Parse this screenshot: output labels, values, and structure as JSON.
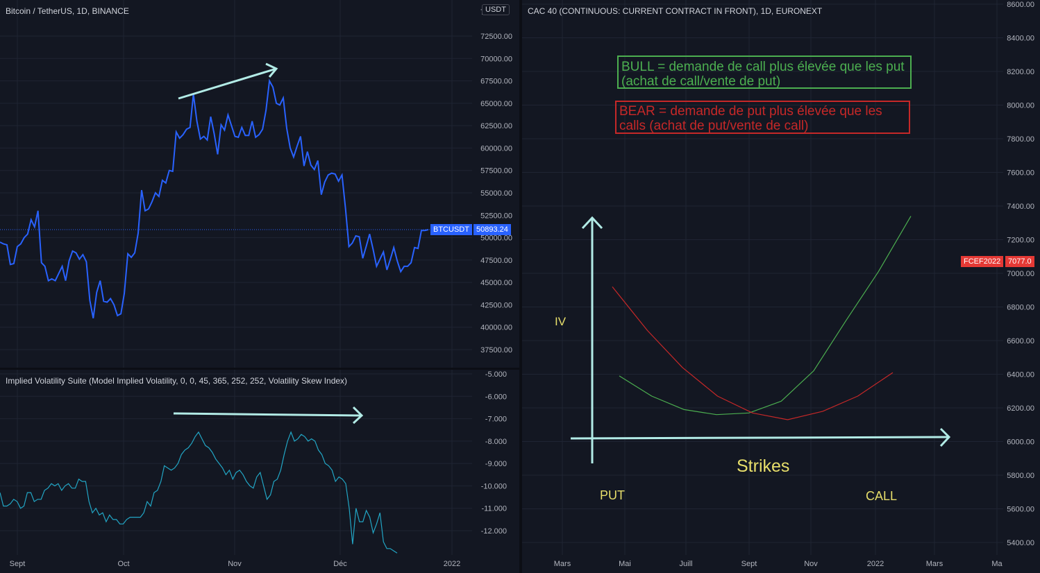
{
  "colors": {
    "background": "#131722",
    "grid": "#1f2433",
    "btc_line": "#2962ff",
    "iv_line": "#22a6c5",
    "annotation_arrow": "#b2ebe6",
    "bull": "#4caf50",
    "bear": "#c62828",
    "text_yellow": "#e8df6b",
    "btc_badge": "#2962ff",
    "cac_badge": "#e53935"
  },
  "left_chart": {
    "title": "Bitcoin / TetherUS, 1D, BINANCE",
    "currency_label": "USDT",
    "symbol_badge": "BTCUSDT",
    "last_price_label": "50893.24",
    "yticks": [
      "72500.00",
      "70000.00",
      "67500.00",
      "65000.00",
      "62500.00",
      "60000.00",
      "57500.00",
      "55000.00",
      "52500.00",
      "50000.00",
      "47500.00",
      "45000.00",
      "42500.00",
      "40000.00",
      "37500.00"
    ],
    "top_tick_partial": "7",
    "xticks": [
      "Sept",
      "Oct",
      "Nov",
      "Déc",
      "2022"
    ]
  },
  "iv_panel": {
    "title": "Implied Volatility Suite (Model Implied Volatility, 0, 0, 45, 365, 252, 252, Volatility Skew Index)",
    "yticks": [
      "-5.000",
      "-6.000",
      "-7.000",
      "-8.000",
      "-9.000",
      "-10.000",
      "-11.000",
      "-12.000"
    ]
  },
  "right_chart": {
    "title": "CAC 40 (CONTINUOUS: CURRENT CONTRACT IN FRONT), 1D, EURONEXT",
    "symbol_badge": "FCEF2022",
    "last_price_label": "7077.0",
    "yticks": [
      "8600.00",
      "8400.00",
      "8200.00",
      "8000.00",
      "7800.00",
      "7600.00",
      "7400.00",
      "7200.00",
      "7000.00",
      "6800.00",
      "6600.00",
      "6400.00",
      "6200.00",
      "6000.00",
      "5800.00",
      "5600.00",
      "5400.00"
    ],
    "xticks": [
      "Mars",
      "Mai",
      "Juill",
      "Sept",
      "Nov",
      "2022",
      "Mars",
      "Ma"
    ],
    "bull_text": "BULL = demande de call plus élevée que les put (achat de call/vente de put)",
    "bear_text": "BEAR = demande de put plus élevée que les calls (achat de put/vente de call)",
    "label_iv": "IV",
    "label_strikes": "Strikes",
    "label_put": "PUT",
    "label_call": "CALL"
  },
  "chart_data": [
    {
      "type": "line",
      "title": "Bitcoin / TetherUS, 1D, BINANCE",
      "x_range": [
        "Aug 26",
        "Dec 24"
      ],
      "ylim": [
        35000,
        75500
      ],
      "series": [
        {
          "values": [
            49500,
            49300,
            49200,
            47000,
            47100,
            49000,
            49300,
            50000,
            50400,
            52000,
            51200,
            53000,
            47200,
            46800,
            45200,
            45400,
            45200,
            46000,
            46800,
            45200,
            47400,
            48500,
            48300,
            47600,
            48100,
            47300,
            43000,
            41000,
            43900,
            45200,
            42900,
            42800,
            43200,
            42500,
            41300,
            41500,
            43800,
            48200,
            47800,
            48300,
            50500,
            55300,
            53000,
            53200,
            54000,
            55000,
            54600,
            56400,
            56100,
            57500,
            57400,
            61800,
            61100,
            61500,
            62100,
            62300,
            66000,
            63000,
            61000,
            61300,
            60900,
            63500,
            61600,
            59300,
            62600,
            62000,
            63700,
            62500,
            61300,
            61200,
            62300,
            61400,
            61400,
            63000,
            61200,
            61500,
            62100,
            64200,
            67500,
            66800,
            65000,
            64800,
            65600,
            62200,
            60000,
            59000,
            60200,
            61300,
            58000,
            59600,
            58100,
            57600,
            58600,
            54800,
            56200,
            57000,
            57200,
            57100,
            56300,
            57000,
            53300,
            49000,
            49400,
            50200,
            50100,
            47700,
            49000,
            50400,
            48700,
            46800,
            47600,
            48400,
            46400,
            47600,
            48900,
            47400,
            46200,
            46800,
            46800,
            47200,
            48900,
            48800,
            50800,
            50800,
            50893
          ]
        }
      ]
    },
    {
      "type": "line",
      "title": "Implied Volatility Suite (Model Implied Volatility, 0, 0, 45, 365, 252, 252, Volatility Skew Index)",
      "ylim": [
        -12.8,
        -4.8
      ],
      "series": [
        {
          "values": [
            -10.3,
            -10.9,
            -10.9,
            -10.8,
            -10.6,
            -10.7,
            -11.0,
            -10.9,
            -10.3,
            -10.3,
            -10.7,
            -10.6,
            -10.6,
            -10.2,
            -10.1,
            -9.9,
            -10.0,
            -9.9,
            -10.2,
            -10.0,
            -9.9,
            -10.1,
            -10.1,
            -9.7,
            -9.8,
            -9.8,
            -10.7,
            -11.2,
            -11.0,
            -11.3,
            -11.2,
            -11.6,
            -11.3,
            -11.5,
            -11.5,
            -11.7,
            -11.7,
            -11.5,
            -11.4,
            -11.4,
            -11.4,
            -11.4,
            -11.2,
            -10.7,
            -10.9,
            -10.3,
            -10.2,
            -9.8,
            -9.1,
            -9.2,
            -9.3,
            -9.2,
            -9.0,
            -8.6,
            -8.4,
            -8.3,
            -8.1,
            -7.8,
            -7.6,
            -7.9,
            -8.2,
            -8.3,
            -8.5,
            -8.8,
            -9.0,
            -9.2,
            -9.5,
            -9.3,
            -9.7,
            -9.4,
            -9.3,
            -9.5,
            -9.8,
            -10.0,
            -10.1,
            -9.6,
            -9.4,
            -10.0,
            -10.6,
            -10.4,
            -9.8,
            -9.7,
            -9.3,
            -8.6,
            -8.0,
            -7.6,
            -8.0,
            -7.9,
            -7.7,
            -7.8,
            -8.0,
            -7.9,
            -8.0,
            -8.4,
            -8.6,
            -9.0,
            -9.1,
            -9.3,
            -9.8,
            -9.6,
            -9.7,
            -9.9,
            -11.0,
            -12.6,
            -11.0,
            -11.6,
            -11.6,
            -11.1,
            -11.4,
            -12.1,
            -11.7,
            -11.2,
            -12.5,
            -12.8,
            -12.8,
            -12.9,
            -13.0
          ]
        }
      ]
    },
    {
      "type": "line",
      "title": "CAC 40 (CONTINUOUS: CURRENT CONTRACT IN FRONT), 1D, EURONEXT",
      "ylim": [
        5300,
        8620
      ],
      "series": [
        {
          "values": [
            6390,
            6270,
            6190,
            6160,
            6170,
            6240,
            6420,
            6720,
            7010,
            7340
          ]
        },
        {
          "values": [
            6920,
            6660,
            6440,
            6270,
            6170,
            6130,
            6180,
            6270,
            6410
          ]
        }
      ]
    }
  ]
}
